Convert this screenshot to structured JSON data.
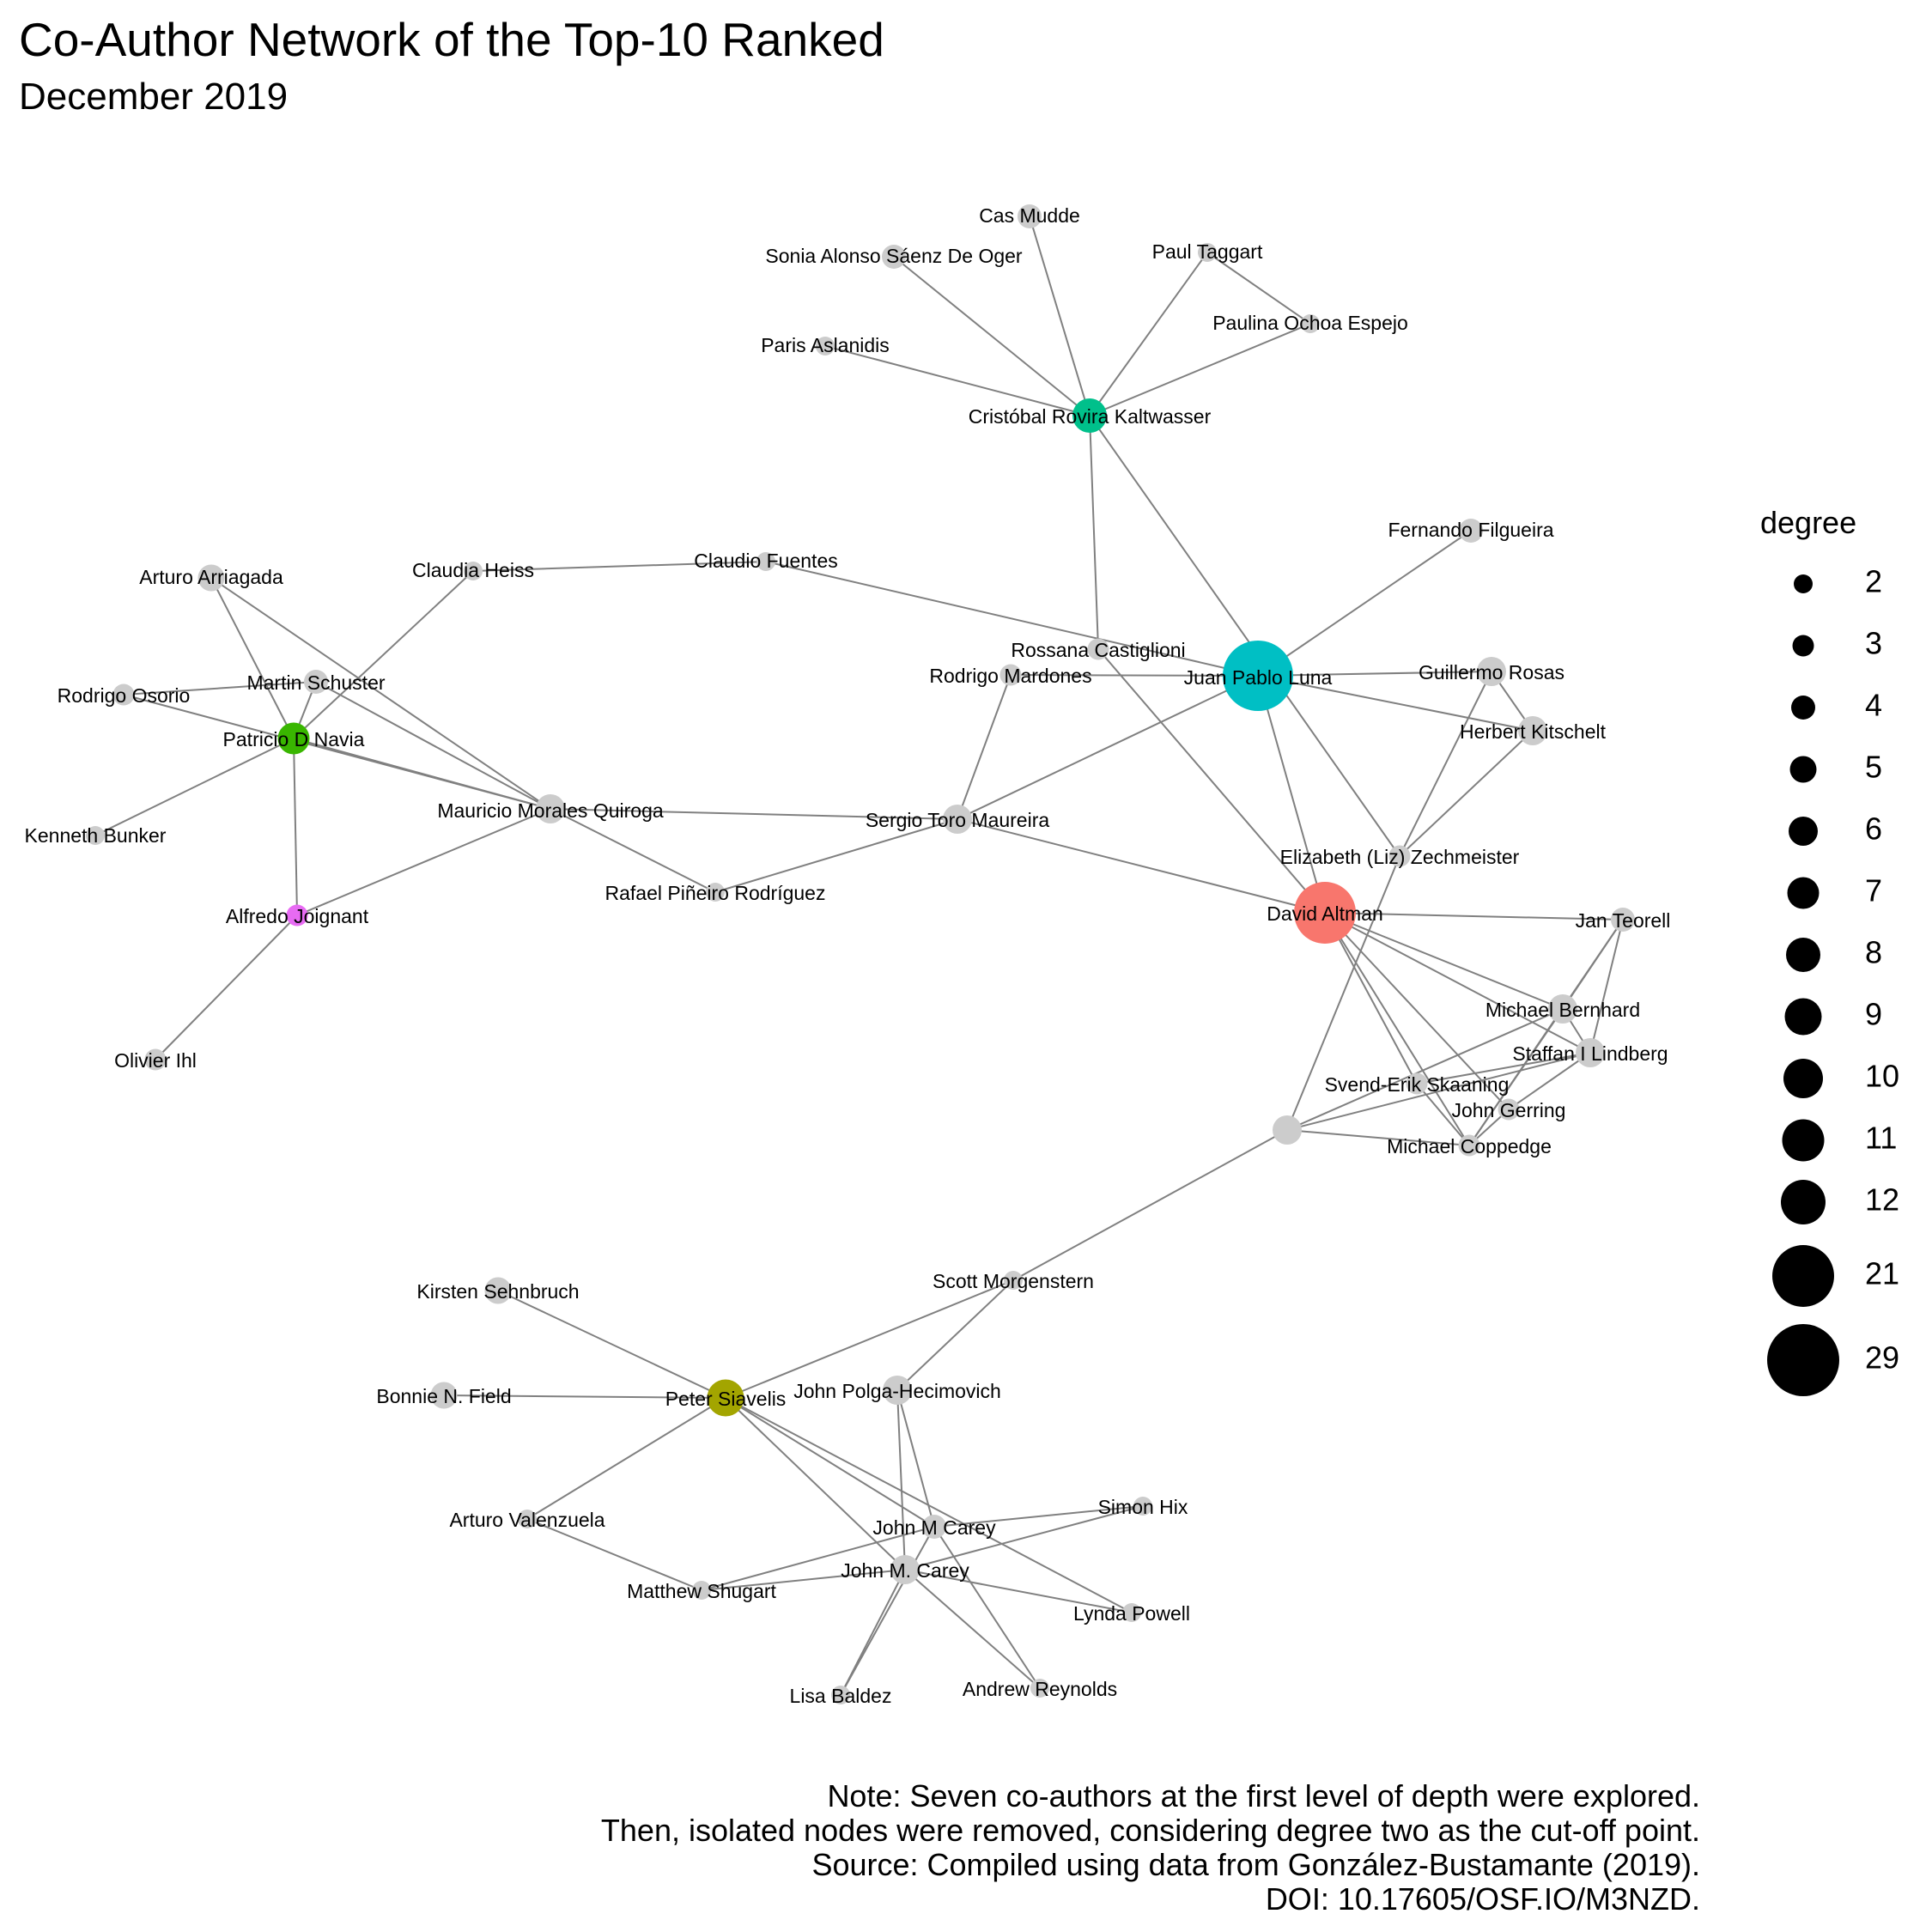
{
  "title": "Co-Author Network of the Top-10 Ranked",
  "subtitle": "December 2019",
  "legend": {
    "title": "degree",
    "values": [
      "2",
      "3",
      "4",
      "5",
      "6",
      "7",
      "8",
      "9",
      "10",
      "11",
      "12",
      "21",
      "29"
    ]
  },
  "caption": [
    "Note: Seven co-authors at the first level of depth were explored.",
    "Then, isolated nodes were removed, considering degree two as the cut-off point.",
    "Source: Compiled using data from González-Bustamante (2019).",
    "DOI: 10.17605/OSF.IO/M3NZD."
  ],
  "colors": {
    "default_node": "#cccccc",
    "edge": "#808080",
    "Cristóbal Rovira Kaltwasser": "#00c08b",
    "Juan Pablo Luna": "#00bfc4",
    "David Altman": "#f8766d",
    "Patricio D Navia": "#39b600",
    "Alfredo Joignant": "#e76bf3",
    "Peter Siavelis": "#a3a500"
  },
  "nodes": [
    {
      "name": "Cas Mudde",
      "degree": 4
    },
    {
      "name": "Sonia Alonso Sáenz De Oger",
      "degree": 4
    },
    {
      "name": "Paul Taggart",
      "degree": 2
    },
    {
      "name": "Paulina Ochoa Espejo",
      "degree": 2
    },
    {
      "name": "Paris Aslanidis",
      "degree": 2
    },
    {
      "name": "Cristóbal Rovira Kaltwasser",
      "degree": 8
    },
    {
      "name": "Fernando Filgueira",
      "degree": 4
    },
    {
      "name": "Arturo Arriagada",
      "degree": 5
    },
    {
      "name": "Claudia Heiss",
      "degree": 2
    },
    {
      "name": "Claudio Fuentes",
      "degree": 2
    },
    {
      "name": "Rossana Castiglioni",
      "degree": 3
    },
    {
      "name": "Martin Schuster",
      "degree": 4
    },
    {
      "name": "Rodrigo Mardones",
      "degree": 3
    },
    {
      "name": "Juan Pablo Luna",
      "degree": 29
    },
    {
      "name": "Guillermo Rosas",
      "degree": 6
    },
    {
      "name": "Rodrigo Osorio",
      "degree": 3
    },
    {
      "name": "Patricio D Navia",
      "degree": 7
    },
    {
      "name": "Herbert Kitschelt",
      "degree": 6
    },
    {
      "name": "Kenneth Bunker",
      "degree": 2
    },
    {
      "name": "Mauricio Morales Quiroga",
      "degree": 6
    },
    {
      "name": "Sergio Toro Maureira",
      "degree": 6
    },
    {
      "name": "Elizabeth (Liz) Zechmeister",
      "degree": 3
    },
    {
      "name": "Rafael Piñeiro Rodríguez",
      "degree": 2
    },
    {
      "name": "Alfredo Joignant",
      "degree": 3
    },
    {
      "name": "David Altman",
      "degree": 21
    },
    {
      "name": "Jan Teorell",
      "degree": 4
    },
    {
      "name": "Michael Bernhard",
      "degree": 6
    },
    {
      "name": "Staffan I Lindberg",
      "degree": 6
    },
    {
      "name": "Olivier Ihl",
      "degree": 3
    },
    {
      "name": "Svend-Erik Skaaning",
      "degree": 3
    },
    {
      "name": "John Gerring",
      "degree": 3
    },
    {
      "name": "",
      "degree": 6
    },
    {
      "name": "Michael Coppedge",
      "degree": 3
    },
    {
      "name": "Scott Morgenstern",
      "degree": 2
    },
    {
      "name": "Kirsten Sehnbruch",
      "degree": 5
    },
    {
      "name": "Bonnie N. Field",
      "degree": 5
    },
    {
      "name": "Peter Siavelis",
      "degree": 9
    },
    {
      "name": "John Polga-Hecimovich",
      "degree": 6
    },
    {
      "name": "Simon Hix",
      "degree": 2
    },
    {
      "name": "John M Carey",
      "degree": 4
    },
    {
      "name": "Arturo Valenzuela",
      "degree": 2
    },
    {
      "name": "John M. Carey",
      "degree": 6
    },
    {
      "name": "Matthew Shugart",
      "degree": 2
    },
    {
      "name": "Lynda Powell",
      "degree": 2
    },
    {
      "name": "Andrew Reynolds",
      "degree": 2
    },
    {
      "name": "Lisa Baldez",
      "degree": 2
    }
  ],
  "edges": [
    [
      "Cas Mudde",
      "Cristóbal Rovira Kaltwasser"
    ],
    [
      "Sonia Alonso Sáenz De Oger",
      "Cristóbal Rovira Kaltwasser"
    ],
    [
      "Paul Taggart",
      "Cristóbal Rovira Kaltwasser"
    ],
    [
      "Paul Taggart",
      "Paulina Ochoa Espejo"
    ],
    [
      "Paulina Ochoa Espejo",
      "Cristóbal Rovira Kaltwasser"
    ],
    [
      "Paris Aslanidis",
      "Cristóbal Rovira Kaltwasser"
    ],
    [
      "Cristóbal Rovira Kaltwasser",
      "Rossana Castiglioni"
    ],
    [
      "Cristóbal Rovira Kaltwasser",
      "Elizabeth (Liz) Zechmeister"
    ],
    [
      "Fernando Filgueira",
      "Juan Pablo Luna"
    ],
    [
      "Claudia Heiss",
      "Claudio Fuentes"
    ],
    [
      "Claudia Heiss",
      "Patricio D Navia"
    ],
    [
      "Claudio Fuentes",
      "Juan Pablo Luna"
    ],
    [
      "Rossana Castiglioni",
      "David Altman"
    ],
    [
      "Rodrigo Mardones",
      "Juan Pablo Luna"
    ],
    [
      "Rodrigo Mardones",
      "Sergio Toro Maureira"
    ],
    [
      "Juan Pablo Luna",
      "Guillermo Rosas"
    ],
    [
      "Juan Pablo Luna",
      "Herbert Kitschelt"
    ],
    [
      "Juan Pablo Luna",
      "Sergio Toro Maureira"
    ],
    [
      "Juan Pablo Luna",
      "David Altman"
    ],
    [
      "Guillermo Rosas",
      "Herbert Kitschelt"
    ],
    [
      "Guillermo Rosas",
      "Elizabeth (Liz) Zechmeister"
    ],
    [
      "Herbert Kitschelt",
      "Elizabeth (Liz) Zechmeister"
    ],
    [
      "Arturo Arriagada",
      "Patricio D Navia"
    ],
    [
      "Arturo Arriagada",
      "Mauricio Morales Quiroga"
    ],
    [
      "Martin Schuster",
      "Patricio D Navia"
    ],
    [
      "Martin Schuster",
      "Mauricio Morales Quiroga"
    ],
    [
      "Rodrigo Osorio",
      "Martin Schuster"
    ],
    [
      "Rodrigo Osorio",
      "Mauricio Morales Quiroga"
    ],
    [
      "Patricio D Navia",
      "Kenneth Bunker"
    ],
    [
      "Patricio D Navia",
      "Mauricio Morales Quiroga"
    ],
    [
      "Patricio D Navia",
      "Alfredo Joignant"
    ],
    [
      "Mauricio Morales Quiroga",
      "Sergio Toro Maureira"
    ],
    [
      "Mauricio Morales Quiroga",
      "Rafael Piñeiro Rodríguez"
    ],
    [
      "Mauricio Morales Quiroga",
      "Alfredo Joignant"
    ],
    [
      "Rafael Piñeiro Rodríguez",
      "Sergio Toro Maureira"
    ],
    [
      "Sergio Toro Maureira",
      "David Altman"
    ],
    [
      "Alfredo Joignant",
      "Olivier Ihl"
    ],
    [
      "Elizabeth (Liz) Zechmeister",
      ""
    ],
    [
      "David Altman",
      "Jan Teorell"
    ],
    [
      "David Altman",
      "Michael Bernhard"
    ],
    [
      "David Altman",
      "Staffan I Lindberg"
    ],
    [
      "David Altman",
      "Svend-Erik Skaaning"
    ],
    [
      "David Altman",
      "John Gerring"
    ],
    [
      "David Altman",
      "Michael Coppedge"
    ],
    [
      "Jan Teorell",
      "Michael Bernhard"
    ],
    [
      "Jan Teorell",
      "Staffan I Lindberg"
    ],
    [
      "Jan Teorell",
      "Michael Coppedge"
    ],
    [
      "Michael Bernhard",
      "Staffan I Lindberg"
    ],
    [
      "Michael Bernhard",
      ""
    ],
    [
      "Michael Bernhard",
      "Michael Coppedge"
    ],
    [
      "Staffan I Lindberg",
      "Svend-Erik Skaaning"
    ],
    [
      "Staffan I Lindberg",
      "John Gerring"
    ],
    [
      "Staffan I Lindberg",
      ""
    ],
    [
      "Svend-Erik Skaaning",
      "Michael Coppedge"
    ],
    [
      "John Gerring",
      "Michael Coppedge"
    ],
    [
      "",
      "Michael Coppedge"
    ],
    [
      "",
      "Scott Morgenstern"
    ],
    [
      "Scott Morgenstern",
      "Peter Siavelis"
    ],
    [
      "Scott Morgenstern",
      "John Polga-Hecimovich"
    ],
    [
      "Kirsten Sehnbruch",
      "Peter Siavelis"
    ],
    [
      "Bonnie N. Field",
      "Peter Siavelis"
    ],
    [
      "Peter Siavelis",
      "Arturo Valenzuela"
    ],
    [
      "Peter Siavelis",
      "John M Carey"
    ],
    [
      "Peter Siavelis",
      "John M. Carey"
    ],
    [
      "Peter Siavelis",
      "Lynda Powell"
    ],
    [
      "John Polga-Hecimovich",
      "John M Carey"
    ],
    [
      "John Polga-Hecimovich",
      "John M. Carey"
    ],
    [
      "Arturo Valenzuela",
      "Matthew Shugart"
    ],
    [
      "Matthew Shugart",
      "John M Carey"
    ],
    [
      "Matthew Shugart",
      "John M. Carey"
    ],
    [
      "John M Carey",
      "Simon Hix"
    ],
    [
      "John M Carey",
      "Andrew Reynolds"
    ],
    [
      "John M Carey",
      "Lisa Baldez"
    ],
    [
      "John M. Carey",
      "Simon Hix"
    ],
    [
      "John M. Carey",
      "Lynda Powell"
    ],
    [
      "John M. Carey",
      "Andrew Reynolds"
    ],
    [
      "John M. Carey",
      "Lisa Baldez"
    ]
  ]
}
